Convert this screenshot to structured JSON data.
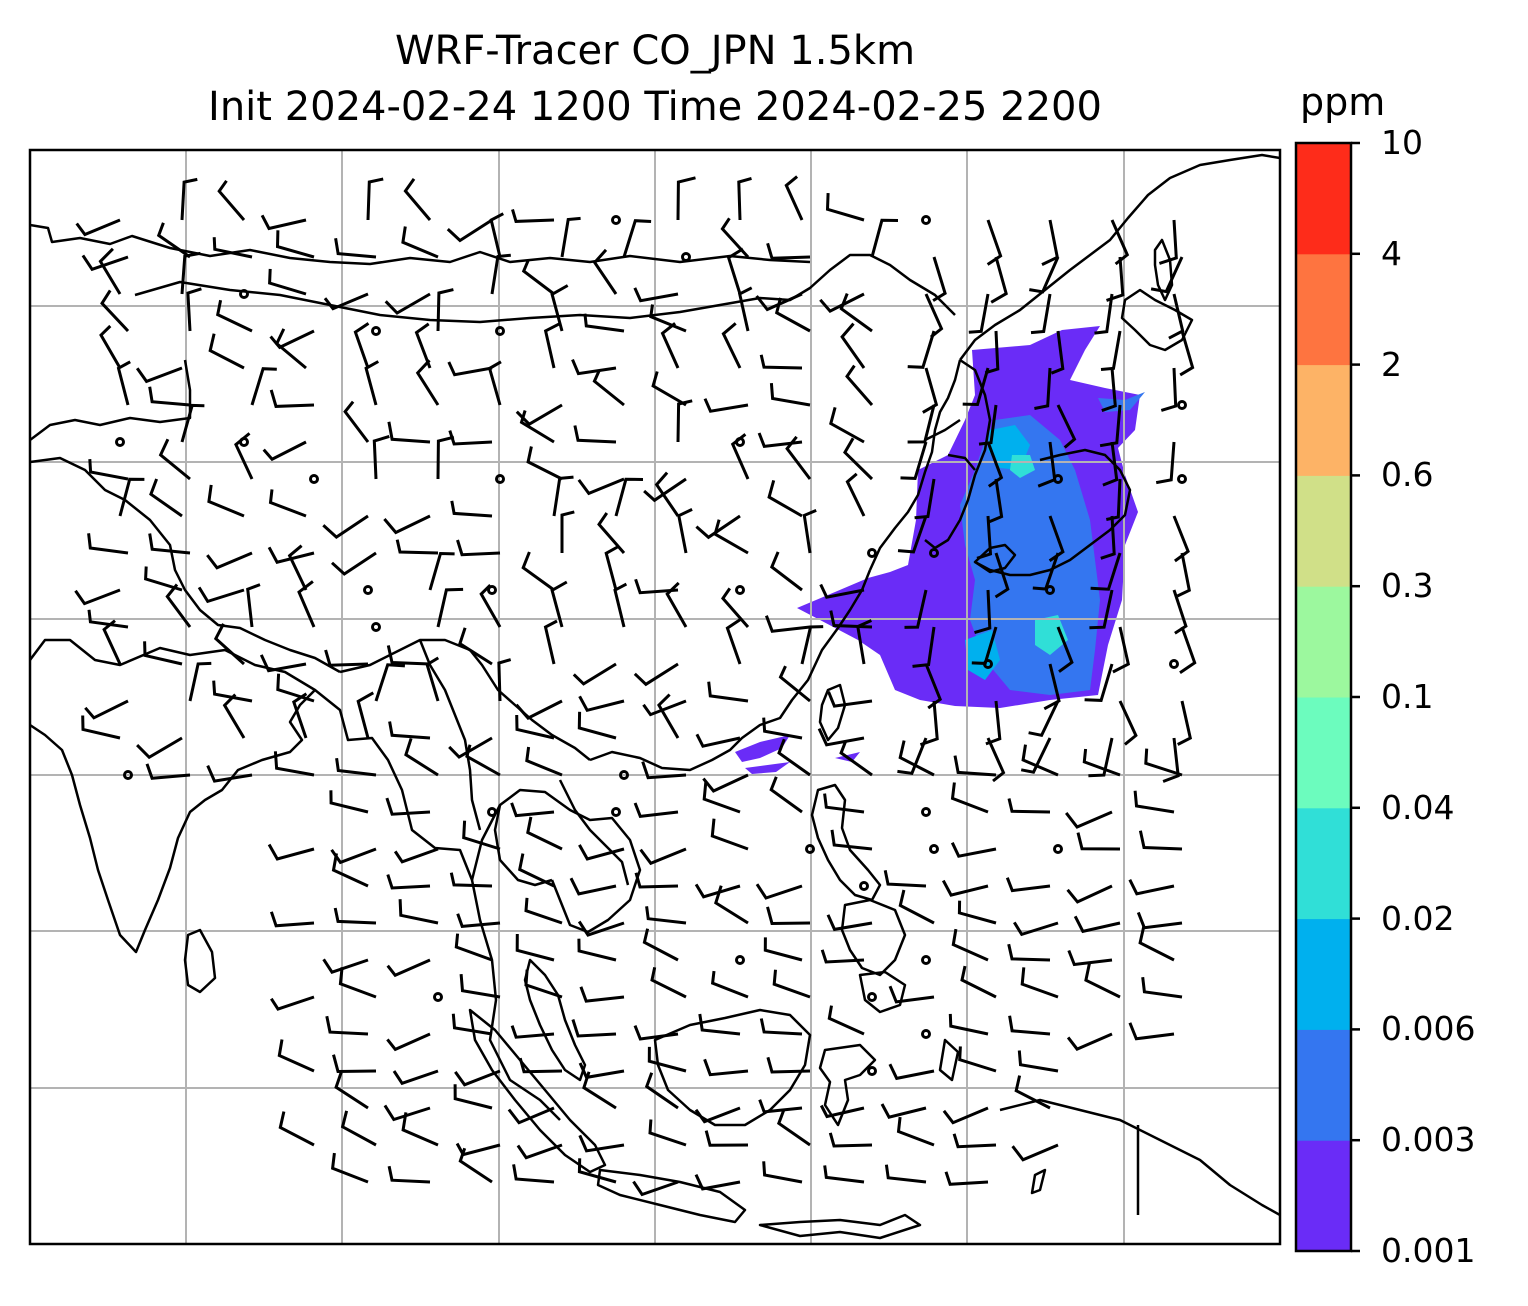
{
  "title_line1": "WRF-Tracer CO_JPN 1.5km",
  "title_line2": "Init 2024-02-24 1200 Time 2024-02-25 2200",
  "colorbar": {
    "unit": "ppm",
    "ticks": [
      "0.001",
      "0.003",
      "0.006",
      "0.02",
      "0.04",
      "0.1",
      "0.3",
      "0.6",
      "2",
      "4",
      "10"
    ],
    "colors": [
      "#6a2cf7",
      "#3476f0",
      "#00b0ee",
      "#30dfd7",
      "#6cfcbe",
      "#9cf89e",
      "#d0e088",
      "#fdb366",
      "#fe7440",
      "#fe2c1a"
    ]
  },
  "map": {
    "gridlines": true,
    "frame": true,
    "coastline_color": "#000000",
    "grid_color": "#b3b3b3"
  }
}
